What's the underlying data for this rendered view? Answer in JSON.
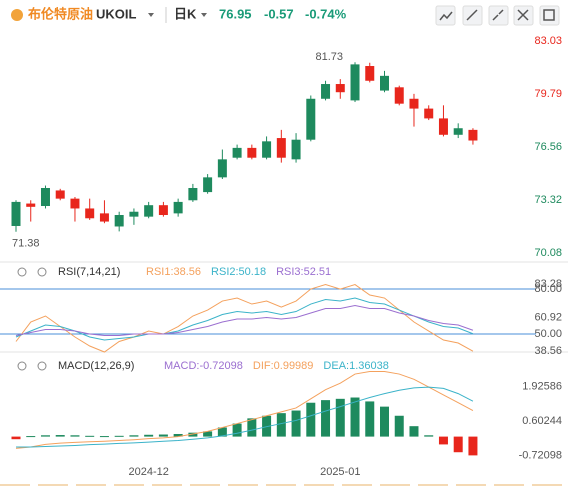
{
  "header": {
    "name": "布伦特原油",
    "symbol": "UKOIL",
    "period": "日K",
    "price": "76.95",
    "change": "-0.57",
    "change_pct": "-0.74%"
  },
  "chart_data": [
    {
      "type": "candlestick",
      "up_color": "#1e8a5e",
      "down_color": "#e8261c",
      "categories": [
        null,
        null,
        null,
        null,
        null,
        null,
        null,
        null,
        null,
        "2024-12",
        null,
        null,
        null,
        null,
        null,
        null,
        null,
        null,
        null,
        null,
        null,
        null,
        "2025-01",
        null,
        null,
        null,
        null,
        null,
        null,
        null,
        null,
        null
      ],
      "open": [
        71.73,
        73.1,
        72.95,
        73.9,
        73.4,
        72.8,
        72.5,
        71.7,
        72.3,
        72.3,
        73.0,
        72.5,
        73.3,
        73.8,
        74.7,
        75.9,
        76.5,
        75.9,
        77.1,
        75.8,
        77.0,
        79.5,
        80.4,
        79.4,
        81.5,
        80.0,
        80.2,
        79.5,
        78.9,
        78.3,
        77.3,
        77.6
      ],
      "high": [
        73.3,
        73.3,
        74.2,
        74.0,
        73.5,
        73.4,
        73.3,
        72.6,
        72.8,
        73.2,
        73.2,
        73.4,
        74.3,
        74.9,
        76.4,
        76.7,
        76.7,
        77.2,
        77.6,
        77.4,
        79.7,
        80.6,
        80.7,
        81.73,
        81.7,
        81.2,
        80.3,
        79.8,
        79.1,
        79.1,
        78.0,
        77.7
      ],
      "low": [
        71.38,
        72.0,
        72.8,
        73.3,
        72.0,
        72.1,
        71.9,
        71.4,
        71.8,
        72.2,
        72.3,
        72.3,
        73.2,
        73.7,
        74.6,
        75.8,
        75.8,
        75.8,
        75.6,
        75.6,
        76.9,
        79.4,
        79.5,
        79.3,
        80.5,
        79.9,
        79.1,
        77.8,
        78.2,
        77.2,
        77.1,
        76.7
      ],
      "close": [
        73.2,
        72.9,
        74.05,
        73.4,
        72.8,
        72.2,
        72.0,
        72.4,
        72.6,
        73.0,
        72.4,
        73.2,
        74.05,
        74.7,
        75.8,
        76.5,
        75.9,
        76.9,
        75.9,
        77.0,
        79.5,
        80.4,
        79.9,
        81.6,
        80.6,
        80.9,
        79.2,
        78.9,
        78.3,
        77.3,
        77.7,
        76.95
      ],
      "ylim": [
        69.53,
        83.7
      ],
      "yticks": [
        83.03,
        79.79,
        76.56,
        73.32,
        70.08
      ],
      "ytick_colors": [
        "#e8261c",
        "#e8261c",
        "#1e8a5e",
        "#1e8a5e",
        "#1e8a5e"
      ],
      "max_label": "81.73",
      "min_label": "71.38"
    },
    {
      "type": "line",
      "title": "RSI(7,14,21)",
      "ylim": [
        38,
        84.7
      ],
      "yticks": [
        {
          "value": 80,
          "label": "80.00"
        },
        83.28,
        60.92,
        {
          "value": 50,
          "label": "50.00"
        },
        38.56
      ],
      "guide_lines": [
        80,
        50
      ],
      "guide_color": "#4a8fd8",
      "series": [
        {
          "name": "RSI1:38.56",
          "color": "#f4a15d",
          "values": [
            45,
            58,
            62,
            55,
            48,
            42,
            38,
            45,
            48,
            52,
            50,
            55,
            62,
            66,
            72,
            74,
            70,
            72,
            68,
            72,
            80,
            83,
            80,
            83,
            76,
            74,
            66,
            58,
            52,
            46,
            44,
            38.56
          ]
        },
        {
          "name": "RSI2:50.18",
          "color": "#3bb3c9",
          "values": [
            48,
            52,
            56,
            55,
            52,
            48,
            46,
            47,
            48,
            50,
            50,
            52,
            56,
            59,
            63,
            65,
            64,
            65,
            63,
            65,
            70,
            73,
            72,
            74,
            71,
            70,
            66,
            62,
            58,
            55,
            54,
            50.18
          ]
        },
        {
          "name": "RSI3:52.51",
          "color": "#9b6fd0",
          "values": [
            49,
            51,
            53,
            53,
            52,
            50,
            49,
            49,
            50,
            50,
            50,
            51,
            53,
            55,
            58,
            60,
            60,
            61,
            60,
            61,
            64,
            67,
            67,
            69,
            67,
            67,
            64,
            62,
            59,
            57,
            56,
            52.51
          ]
        }
      ]
    },
    {
      "type": "combo",
      "title": "MACD(12,26,9)",
      "ylim": [
        -1.09,
        2.94
      ],
      "yticks": [
        1.92586,
        0.60244,
        -0.72098
      ],
      "up_color": "#1e8a5e",
      "down_color": "#e8261c",
      "series": [
        {
          "name": "MACD:-0.72098",
          "kind": "bar",
          "color": "#9b6fd0",
          "values": [
            -0.1,
            0.02,
            0.05,
            0.06,
            0.05,
            0.03,
            0.02,
            0.03,
            0.05,
            0.07,
            0.08,
            0.1,
            0.15,
            0.2,
            0.35,
            0.5,
            0.7,
            0.8,
            0.9,
            1.0,
            1.3,
            1.4,
            1.45,
            1.5,
            1.35,
            1.15,
            0.8,
            0.4,
            0.05,
            -0.3,
            -0.6,
            -0.72098
          ]
        },
        {
          "name": "DIF:0.99989",
          "kind": "line",
          "color": "#f4a15d",
          "values": [
            -0.45,
            -0.4,
            -0.3,
            -0.25,
            -0.22,
            -0.2,
            -0.18,
            -0.15,
            -0.12,
            -0.08,
            -0.05,
            0.0,
            0.1,
            0.2,
            0.35,
            0.5,
            0.65,
            0.8,
            0.95,
            1.1,
            1.45,
            1.8,
            2.05,
            2.4,
            2.5,
            2.5,
            2.4,
            2.2,
            1.9,
            1.6,
            1.3,
            0.99989
          ]
        },
        {
          "name": "DEA:1.36038",
          "kind": "line",
          "color": "#3bb3c9",
          "values": [
            -0.4,
            -0.4,
            -0.38,
            -0.36,
            -0.34,
            -0.31,
            -0.29,
            -0.26,
            -0.24,
            -0.21,
            -0.18,
            -0.15,
            -0.1,
            -0.05,
            0.03,
            0.13,
            0.25,
            0.38,
            0.5,
            0.62,
            0.8,
            0.98,
            1.15,
            1.33,
            1.5,
            1.65,
            1.78,
            1.87,
            1.9,
            1.85,
            1.65,
            1.36038
          ]
        }
      ]
    }
  ]
}
